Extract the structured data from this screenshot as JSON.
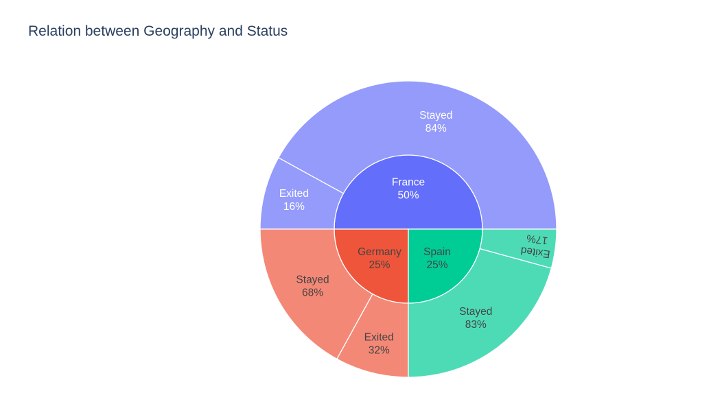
{
  "chart_data": {
    "type": "sunburst",
    "title": "Relation between Geography and Status",
    "nodes": [
      {
        "label": "France",
        "percent": "50%",
        "value": 50,
        "color": "#636efa",
        "text_color": "#ffffff",
        "children": [
          {
            "label": "Stayed",
            "percent": "84%",
            "value": 84,
            "color": "#949bfb",
            "text_color": "#ffffff"
          },
          {
            "label": "Exited",
            "percent": "16%",
            "value": 16,
            "color": "#949bfb",
            "text_color": "#ffffff"
          }
        ]
      },
      {
        "label": "Germany",
        "percent": "25%",
        "value": 25,
        "color": "#ef553b",
        "text_color": "#444444",
        "children": [
          {
            "label": "Stayed",
            "percent": "68%",
            "value": 68,
            "color": "#f48876",
            "text_color": "#444444"
          },
          {
            "label": "Exited",
            "percent": "32%",
            "value": 32,
            "color": "#f48876",
            "text_color": "#444444"
          }
        ]
      },
      {
        "label": "Spain",
        "percent": "25%",
        "value": 25,
        "color": "#00cc96",
        "text_color": "#444444",
        "children": [
          {
            "label": "Stayed",
            "percent": "83%",
            "value": 83,
            "color": "#4ddbb6",
            "text_color": "#444444"
          },
          {
            "label": "Exited",
            "percent": "17%",
            "value": 17,
            "color": "#4ddbb6",
            "text_color": "#444444"
          }
        ]
      }
    ]
  }
}
